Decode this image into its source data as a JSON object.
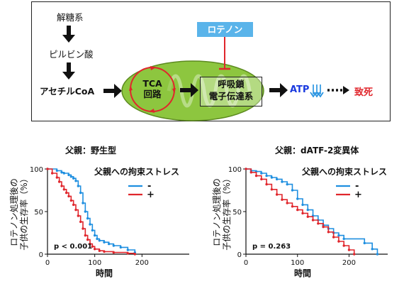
{
  "pathway": {
    "glycolysis": "解糖系",
    "pyruvate": "ピルビン酸",
    "acetyl_coa": "アセチルCoA",
    "tca_line1": "TCA",
    "tca_line2": "回路",
    "etc_line1": "呼吸鎖",
    "etc_line2": "電子伝達系",
    "rotenone": "ロテノン",
    "atp": "ATP",
    "death": "致死",
    "colors": {
      "rotenone_box": "#5ab4ea",
      "mito_fill": "#8dc63f",
      "tca_ring": "#e0262c",
      "atp": "#1a3adf",
      "death": "#e0262c"
    }
  },
  "charts": {
    "ylabel_line1": "ロテノン処理後の",
    "ylabel_line2": "子供の生存率（%）",
    "xlabel": "時間",
    "legend_title": "父親への拘束ストレス",
    "legend_minus": "-",
    "legend_plus": "+",
    "yticks": [
      "0",
      "50",
      "100"
    ],
    "colors": {
      "minus": "#1f8fe0",
      "plus": "#e0262c"
    }
  },
  "chart_data": [
    {
      "type": "line",
      "title": "父親：野生型",
      "xlabel": "時間",
      "ylabel": "ロテノン処理後の 子供の生存率（%）",
      "xlim": [
        0,
        300
      ],
      "ylim": [
        0,
        100
      ],
      "xticks": [
        "0",
        "100",
        "200"
      ],
      "annotation": "p < 0.001",
      "series": [
        {
          "name": "-",
          "color": "#1f8fe0",
          "x": [
            0,
            20,
            30,
            35,
            45,
            50,
            55,
            60,
            65,
            70,
            75,
            80,
            85,
            90,
            95,
            100,
            105,
            110,
            120,
            130,
            140,
            155,
            170,
            185
          ],
          "y": [
            100,
            98,
            96,
            95,
            93,
            91,
            89,
            86,
            80,
            72,
            60,
            50,
            42,
            35,
            28,
            22,
            18,
            16,
            14,
            12,
            10,
            8,
            5,
            2
          ]
        },
        {
          "name": "+",
          "color": "#e0262c",
          "x": [
            0,
            10,
            20,
            25,
            30,
            35,
            40,
            45,
            50,
            55,
            60,
            65,
            70,
            75,
            80,
            85,
            90,
            95,
            100,
            110,
            120,
            140,
            170,
            185
          ],
          "y": [
            100,
            95,
            90,
            85,
            80,
            76,
            72,
            68,
            63,
            58,
            52,
            45,
            38,
            30,
            22,
            17,
            12,
            9,
            6,
            4,
            3,
            2,
            1,
            0
          ]
        }
      ]
    },
    {
      "type": "line",
      "title": "父親：dATF-2変異体",
      "xlabel": "時間",
      "ylabel": "ロテノン処理後の 子供の生存率（%）",
      "xlim": [
        0,
        275
      ],
      "ylim": [
        0,
        100
      ],
      "xticks": [
        "0",
        "100",
        "200"
      ],
      "annotation": "p = 0.263",
      "series": [
        {
          "name": "-",
          "color": "#1f8fe0",
          "x": [
            0,
            10,
            20,
            30,
            40,
            50,
            60,
            70,
            80,
            90,
            100,
            110,
            120,
            130,
            140,
            150,
            160,
            170,
            180,
            190,
            230,
            245,
            255
          ],
          "y": [
            100,
            98,
            97,
            95,
            92,
            90,
            88,
            85,
            82,
            75,
            65,
            58,
            52,
            45,
            40,
            34,
            30,
            25,
            22,
            18,
            13,
            6,
            0
          ]
        },
        {
          "name": "+",
          "color": "#e0262c",
          "x": [
            0,
            10,
            20,
            30,
            40,
            50,
            60,
            70,
            80,
            90,
            100,
            110,
            120,
            130,
            140,
            150,
            160,
            170,
            180,
            190,
            200,
            210
          ],
          "y": [
            100,
            96,
            92,
            88,
            82,
            76,
            70,
            64,
            60,
            56,
            52,
            48,
            44,
            40,
            36,
            32,
            26,
            20,
            15,
            10,
            5,
            0
          ]
        }
      ]
    }
  ]
}
